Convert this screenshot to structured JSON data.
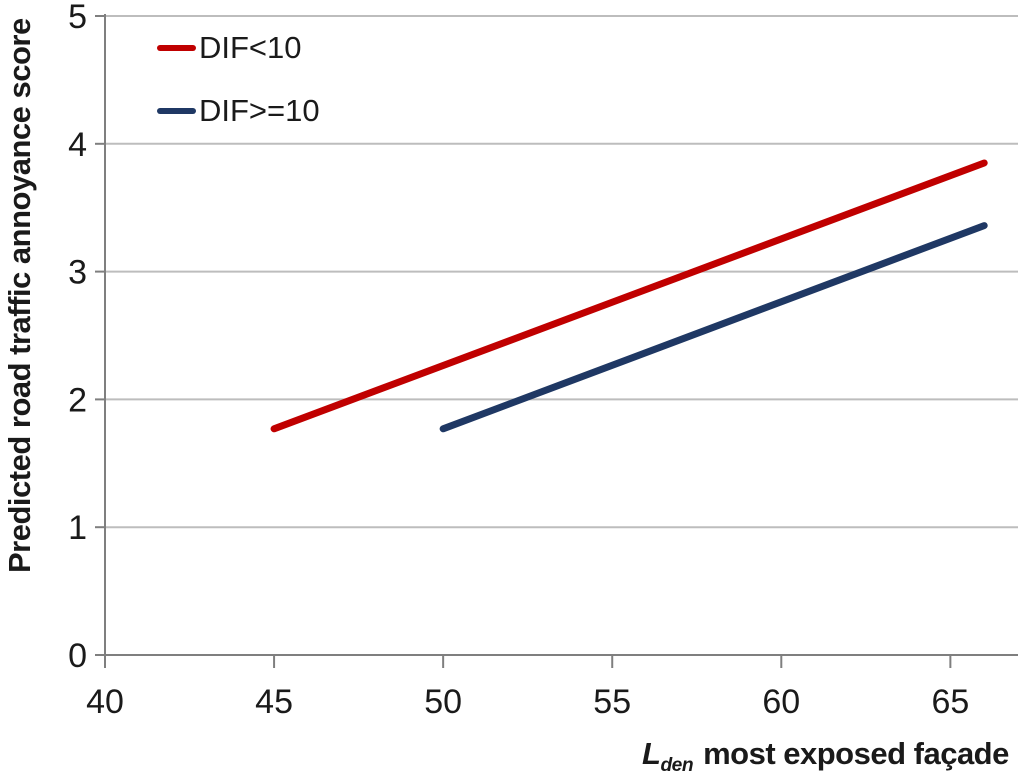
{
  "chart_data": {
    "type": "line",
    "title": "",
    "ylabel": "Predicted road traffic annoyance score",
    "xlabel_symbol": "L",
    "xlabel_subscript": "den",
    "xlabel_rest": "most exposed façade",
    "xlim": [
      40,
      67
    ],
    "ylim": [
      0,
      5
    ],
    "x_ticks": [
      40,
      45,
      50,
      55,
      60,
      65
    ],
    "y_ticks": [
      0,
      1,
      2,
      3,
      4,
      5
    ],
    "grid": "horizontal",
    "legend_position": "top-left-inside",
    "series": [
      {
        "name": "DIF<10",
        "color": "#C00000",
        "points": [
          [
            45,
            1.77
          ],
          [
            66,
            3.85
          ]
        ]
      },
      {
        "name": "DIF>=10",
        "color": "#1F3864",
        "points": [
          [
            50,
            1.77
          ],
          [
            66,
            3.36
          ]
        ]
      }
    ],
    "colors": {
      "grid": "#BDBDBD",
      "axis": "#7F7F7F",
      "text": "#1A1A1A",
      "background": "#FFFFFF"
    }
  }
}
